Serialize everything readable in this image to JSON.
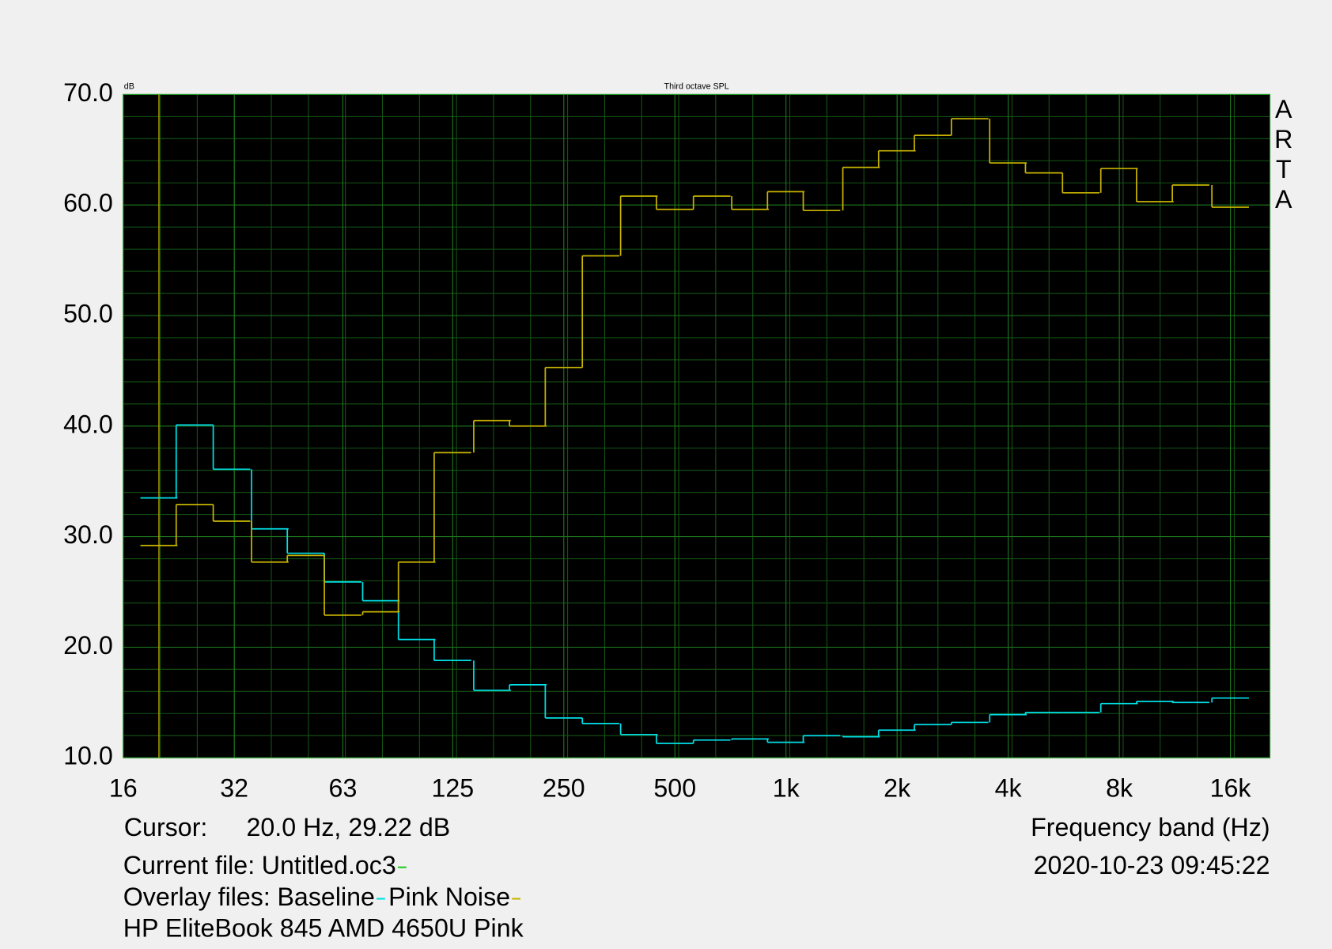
{
  "chart_data": {
    "type": "step",
    "title": "Third octave SPL",
    "y_unit": "dB",
    "x_label": "Frequency band (Hz)",
    "brand": "ARTA",
    "cursor_label": "Cursor:",
    "cursor_value": "20.0 Hz, 29.22 dB",
    "cursor": {
      "x": 20,
      "color": "#b8a800"
    },
    "current_file_label": "Current file:",
    "current_file": {
      "name": "Untitled.oc3",
      "color": "#22cc22"
    },
    "overlay_label": "Overlay files:",
    "timestamp": "2020-10-23  09:45:22",
    "note": "HP EliteBook 845 AMD 4650U Pink",
    "log_x": true,
    "grid": true,
    "x": [
      20,
      25,
      31.5,
      40,
      50,
      63,
      80,
      100,
      125,
      160,
      200,
      250,
      315,
      400,
      500,
      630,
      800,
      1000,
      1250,
      1600,
      2000,
      2500,
      3150,
      4000,
      5000,
      6300,
      8000,
      10000,
      12500,
      16000
    ],
    "series": [
      {
        "name": "Baseline",
        "color": "#00e0e8",
        "values": [
          33.5,
          40.1,
          36.1,
          30.7,
          28.5,
          25.9,
          24.2,
          20.7,
          18.8,
          16.1,
          16.6,
          13.6,
          13.1,
          12.1,
          11.3,
          11.6,
          11.7,
          11.4,
          12.0,
          11.9,
          12.5,
          13.0,
          13.2,
          13.9,
          14.1,
          14.1,
          14.9,
          15.1,
          15.0,
          15.4
        ]
      },
      {
        "name": "Pink Noise",
        "color": "#c8b400",
        "values": [
          29.2,
          32.9,
          31.4,
          27.7,
          28.3,
          22.9,
          23.2,
          27.7,
          37.6,
          40.5,
          40.0,
          45.3,
          55.4,
          60.8,
          59.6,
          60.8,
          59.6,
          61.2,
          59.5,
          63.4,
          64.9,
          66.3,
          67.8,
          63.8,
          62.9,
          61.1,
          63.3,
          60.3,
          61.8,
          59.8
        ]
      }
    ],
    "xlim": [
      16,
      20480
    ],
    "xticks": [
      16,
      32,
      63,
      125,
      250,
      500,
      {
        "value": 1000,
        "label": "1k"
      },
      {
        "value": 2000,
        "label": "2k"
      },
      {
        "value": 4000,
        "label": "4k"
      },
      {
        "value": 8000,
        "label": "8k"
      },
      {
        "value": 16000,
        "label": "16k"
      }
    ],
    "ylim": [
      10,
      70
    ],
    "yticks": [
      {
        "value": 10,
        "label": "10.0"
      },
      {
        "value": 20,
        "label": "20.0"
      },
      {
        "value": 30,
        "label": "30.0"
      },
      {
        "value": 40,
        "label": "40.0"
      },
      {
        "value": 50,
        "label": "50.0"
      },
      {
        "value": 60,
        "label": "60.0"
      },
      {
        "value": 70,
        "label": "70.0"
      }
    ]
  }
}
